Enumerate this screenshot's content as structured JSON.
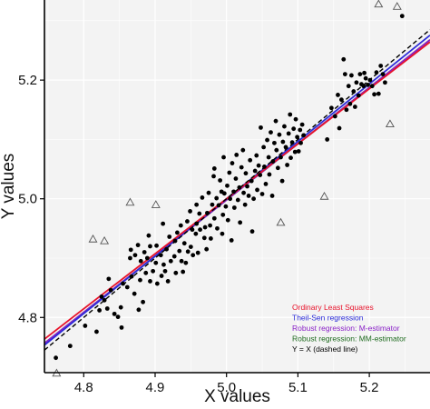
{
  "chart_data": {
    "type": "scatter",
    "xlabel": "X values",
    "ylabel": "Y values",
    "xlim": [
      4.745,
      5.285
    ],
    "ylim": [
      4.707,
      5.335
    ],
    "xticks": [
      4.8,
      4.9,
      5.0,
      5.1,
      5.2
    ],
    "yticks": [
      4.8,
      5.0,
      5.2
    ],
    "grid": true,
    "legend_position": "bottom-right",
    "colors": {
      "panel": "#f3f3f3",
      "grid": "#ffffff",
      "points": "#000000",
      "outlier_marker": "#555555"
    },
    "series": [
      {
        "marker": "dot",
        "points": [
          [
            4.761,
            4.732
          ],
          [
            4.781,
            4.752
          ],
          [
            4.802,
            4.786
          ],
          [
            4.818,
            4.776
          ],
          [
            4.822,
            4.812
          ],
          [
            4.825,
            4.835
          ],
          [
            4.829,
            4.829
          ],
          [
            4.833,
            4.815
          ],
          [
            4.835,
            4.865
          ],
          [
            4.838,
            4.846
          ],
          [
            4.843,
            4.806
          ],
          [
            4.848,
            4.801
          ],
          [
            4.852,
            4.817
          ],
          [
            4.853,
            4.783
          ],
          [
            4.855,
            4.857
          ],
          [
            4.861,
            4.851
          ],
          [
            4.865,
            4.9
          ],
          [
            4.866,
            4.914
          ],
          [
            4.867,
            4.869
          ],
          [
            4.871,
            4.84
          ],
          [
            4.872,
            4.905
          ],
          [
            4.876,
            4.922
          ],
          [
            4.877,
            4.813
          ],
          [
            4.879,
            4.863
          ],
          [
            4.88,
            4.895
          ],
          [
            4.883,
            4.826
          ],
          [
            4.885,
            4.91
          ],
          [
            4.887,
            4.875
          ],
          [
            4.889,
            4.9
          ],
          [
            4.891,
            4.938
          ],
          [
            4.893,
            4.861
          ],
          [
            4.893,
            4.92
          ],
          [
            4.897,
            4.878
          ],
          [
            4.901,
            4.892
          ],
          [
            4.902,
            4.921
          ],
          [
            4.903,
            4.857
          ],
          [
            4.908,
            4.905
          ],
          [
            4.909,
            4.87
          ],
          [
            4.911,
            4.958
          ],
          [
            4.912,
            4.889
          ],
          [
            4.914,
            4.878
          ],
          [
            4.916,
            4.915
          ],
          [
            4.918,
            4.861
          ],
          [
            4.92,
            4.936
          ],
          [
            4.922,
            4.895
          ],
          [
            4.927,
            4.903
          ],
          [
            4.928,
            4.929
          ],
          [
            4.929,
            4.875
          ],
          [
            4.931,
            4.943
          ],
          [
            4.934,
            4.912
          ],
          [
            4.936,
            4.955
          ],
          [
            4.937,
            4.895
          ],
          [
            4.939,
            4.877
          ],
          [
            4.941,
            4.925
          ],
          [
            4.943,
            4.892
          ],
          [
            4.945,
            4.962
          ],
          [
            4.946,
            4.911
          ],
          [
            4.949,
            4.979
          ],
          [
            4.95,
            4.919
          ],
          [
            4.952,
            4.948
          ],
          [
            4.953,
            4.905
          ],
          [
            4.957,
            4.941
          ],
          [
            4.958,
            4.99
          ],
          [
            4.958,
            4.958
          ],
          [
            4.96,
            4.909
          ],
          [
            4.962,
            4.975
          ],
          [
            4.963,
            4.948
          ],
          [
            4.966,
            5.002
          ],
          [
            4.969,
            4.934
          ],
          [
            4.97,
            4.952
          ],
          [
            4.972,
            4.915
          ],
          [
            4.973,
            4.976
          ],
          [
            4.975,
            5.01
          ],
          [
            4.977,
            4.955
          ],
          [
            4.978,
            4.933
          ],
          [
            4.98,
            4.99
          ],
          [
            4.982,
            5.038
          ],
          [
            4.983,
            5.051
          ],
          [
            4.983,
            4.967
          ],
          [
            4.986,
            5.001
          ],
          [
            4.987,
            4.95
          ],
          [
            4.989,
            4.989
          ],
          [
            4.991,
            5.031
          ],
          [
            4.993,
            5.012
          ],
          [
            4.994,
            4.941
          ],
          [
            4.995,
            4.973
          ],
          [
            4.996,
            5.07
          ],
          [
            4.997,
            5.009
          ],
          [
            4.999,
            4.987
          ],
          [
            5.001,
            5.022
          ],
          [
            5.002,
            4.964
          ],
          [
            5.004,
            5.044
          ],
          [
            5.005,
            5.0
          ],
          [
            5.007,
            4.93
          ],
          [
            5.008,
            5.06
          ],
          [
            5.01,
            5.012
          ],
          [
            5.011,
            4.985
          ],
          [
            5.013,
            5.034
          ],
          [
            5.014,
            5.074
          ],
          [
            5.016,
            4.998
          ],
          [
            5.018,
            5.019
          ],
          [
            5.019,
            4.96
          ],
          [
            5.021,
            5.053
          ],
          [
            5.023,
            5.082
          ],
          [
            5.024,
            5.01
          ],
          [
            5.026,
            4.99
          ],
          [
            5.027,
            5.043
          ],
          [
            5.029,
            5.021
          ],
          [
            5.031,
            5.005
          ],
          [
            5.033,
            5.065
          ],
          [
            5.035,
            5.03
          ],
          [
            5.036,
            4.945
          ],
          [
            5.038,
            5.0
          ],
          [
            5.04,
            5.047
          ],
          [
            5.042,
            5.073
          ],
          [
            5.043,
            5.015
          ],
          [
            5.045,
            5.056
          ],
          [
            5.047,
            5.04
          ],
          [
            5.048,
            5.12
          ],
          [
            5.05,
            5.008
          ],
          [
            5.052,
            5.087
          ],
          [
            5.053,
            5.054
          ],
          [
            5.055,
            5.025
          ],
          [
            5.057,
            5.099
          ],
          [
            5.059,
            5.07
          ],
          [
            5.06,
            5.041
          ],
          [
            5.062,
            5.112
          ],
          [
            5.064,
            5.005
          ],
          [
            5.065,
            5.063
          ],
          [
            5.067,
            5.094
          ],
          [
            5.069,
            5.131
          ],
          [
            5.07,
            5.082
          ],
          [
            5.072,
            5.052
          ],
          [
            5.074,
            5.108
          ],
          [
            5.076,
            5.07
          ],
          [
            5.078,
            5.03
          ],
          [
            5.079,
            5.096
          ],
          [
            5.081,
            5.122
          ],
          [
            5.083,
            5.087
          ],
          [
            5.085,
            5.057
          ],
          [
            5.087,
            5.11
          ],
          [
            5.089,
            5.142
          ],
          [
            5.09,
            5.069
          ],
          [
            5.092,
            5.095
          ],
          [
            5.094,
            5.118
          ],
          [
            5.096,
            5.079
          ],
          [
            5.097,
            5.134
          ],
          [
            5.099,
            5.104
          ],
          [
            5.101,
            5.08
          ],
          [
            5.103,
            5.116
          ],
          [
            5.104,
            5.094
          ],
          [
            5.106,
            5.125
          ],
          [
            5.108,
            5.107
          ],
          [
            5.141,
            5.1
          ],
          [
            5.147,
            5.153
          ],
          [
            5.152,
            5.139
          ],
          [
            5.156,
            5.175
          ],
          [
            5.158,
            5.119
          ],
          [
            5.161,
            5.167
          ],
          [
            5.164,
            5.235
          ],
          [
            5.166,
            5.21
          ],
          [
            5.168,
            5.15
          ],
          [
            5.171,
            5.19
          ],
          [
            5.173,
            5.16
          ],
          [
            5.175,
            5.208
          ],
          [
            5.178,
            5.181
          ],
          [
            5.18,
            5.155
          ],
          [
            5.182,
            5.196
          ],
          [
            5.185,
            5.174
          ],
          [
            5.187,
            5.21
          ],
          [
            5.189,
            5.193
          ],
          [
            5.192,
            5.19
          ],
          [
            5.193,
            5.212
          ],
          [
            5.195,
            5.203
          ],
          [
            5.198,
            5.192
          ],
          [
            5.201,
            5.2
          ],
          [
            5.204,
            5.19
          ],
          [
            5.207,
            5.176
          ],
          [
            5.21,
            5.213
          ],
          [
            5.213,
            5.177
          ],
          [
            5.216,
            5.224
          ],
          [
            5.219,
            5.21
          ],
          [
            5.222,
            5.196
          ],
          [
            5.246,
            5.308
          ]
        ]
      },
      {
        "marker": "open-triangle",
        "points": [
          [
            4.762,
            4.706
          ],
          [
            4.813,
            4.932
          ],
          [
            4.829,
            4.929
          ],
          [
            4.865,
            4.994
          ],
          [
            4.901,
            4.99
          ],
          [
            5.076,
            4.96
          ],
          [
            5.137,
            5.004
          ],
          [
            5.213,
            5.328
          ],
          [
            5.229,
            5.126
          ],
          [
            5.239,
            5.324
          ]
        ]
      }
    ],
    "lines": [
      {
        "name": "Ordinary Least Squares",
        "color": "#e8132b",
        "dash": "solid",
        "intercept": 0.365,
        "slope": 0.927
      },
      {
        "name": "Theil-Sen regression",
        "color": "#2b2bd9",
        "dash": "solid",
        "intercept": 0.165,
        "slope": 0.967
      },
      {
        "name": "Robust regression: M-estimator",
        "color": "#8a21c7",
        "dash": "solid",
        "intercept": 0.263,
        "slope": 0.947
      },
      {
        "name": "Robust regression: MM-estimator",
        "color": "#1f6b1f",
        "dash": "solid",
        "intercept": 0.263,
        "slope": 0.947
      },
      {
        "name": "Y = X (dashed line)",
        "color": "#000000",
        "dash": "dashed",
        "intercept": 0.0,
        "slope": 1.0
      }
    ]
  }
}
